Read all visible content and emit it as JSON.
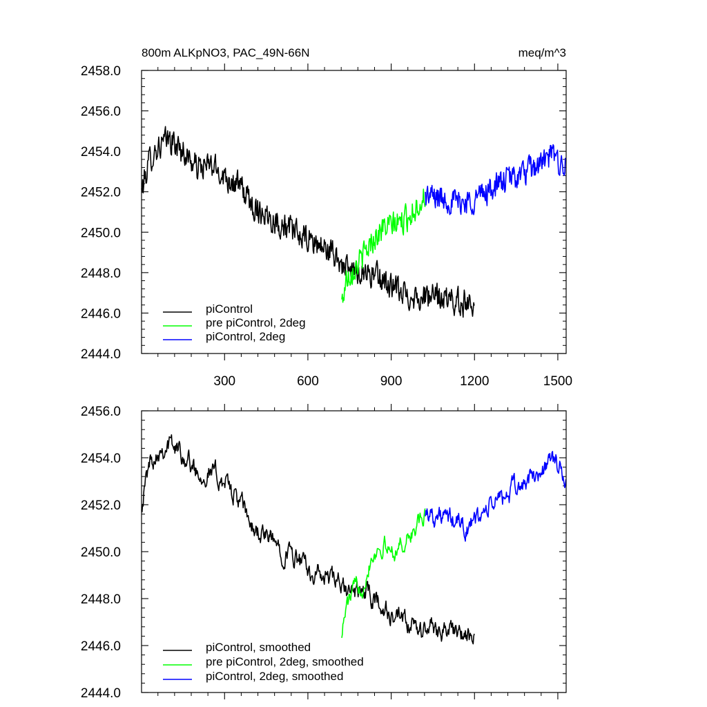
{
  "chart_data": [
    {
      "type": "line",
      "title_left": "800m ALKpNO3, PAC_49N-66N",
      "title_right": "meq/m^3",
      "xlim": [
        1,
        1530
      ],
      "ylim": [
        2444.0,
        2458.0
      ],
      "x_ticks": [
        300,
        600,
        900,
        1200,
        1500
      ],
      "x_tick_labels": [
        "300",
        "600",
        "900",
        "1200",
        "1500"
      ],
      "y_ticks": [
        2444.0,
        2446.0,
        2448.0,
        2450.0,
        2452.0,
        2454.0,
        2456.0,
        2458.0
      ],
      "y_tick_labels": [
        "2444.0",
        "2446.0",
        "2448.0",
        "2450.0",
        "2452.0",
        "2454.0",
        "2456.0",
        "2458.0"
      ],
      "legend_position": "bottom-left",
      "series": [
        {
          "name": "piControl",
          "color": "#000000",
          "x_start": 1,
          "x_end": 1200,
          "anchors": [
            [
              1,
              2452.0
            ],
            [
              30,
              2453.6
            ],
            [
              60,
              2454.2
            ],
            [
              100,
              2454.6
            ],
            [
              150,
              2454.0
            ],
            [
              200,
              2453.2
            ],
            [
              250,
              2453.3
            ],
            [
              300,
              2452.8
            ],
            [
              360,
              2452.2
            ],
            [
              400,
              2451.3
            ],
            [
              450,
              2450.9
            ],
            [
              500,
              2450.4
            ],
            [
              550,
              2450.0
            ],
            [
              600,
              2449.6
            ],
            [
              650,
              2449.3
            ],
            [
              700,
              2448.8
            ],
            [
              750,
              2448.0
            ],
            [
              800,
              2448.1
            ],
            [
              850,
              2447.8
            ],
            [
              900,
              2447.3
            ],
            [
              950,
              2446.9
            ],
            [
              1000,
              2446.8
            ],
            [
              1050,
              2446.8
            ],
            [
              1100,
              2446.7
            ],
            [
              1150,
              2446.5
            ],
            [
              1200,
              2446.6
            ]
          ],
          "noise_amplitude": 0.9
        },
        {
          "name": "pre piControl, 2deg",
          "color": "#00ff00",
          "x_start": 722,
          "x_end": 1022,
          "anchors": [
            [
              722,
              2446.5
            ],
            [
              740,
              2447.8
            ],
            [
              770,
              2448.3
            ],
            [
              800,
              2448.8
            ],
            [
              830,
              2449.6
            ],
            [
              870,
              2450.2
            ],
            [
              900,
              2450.3
            ],
            [
              950,
              2450.6
            ],
            [
              1000,
              2451.4
            ],
            [
              1022,
              2451.8
            ]
          ],
          "noise_amplitude": 0.9
        },
        {
          "name": "piControl, 2deg",
          "color": "#0000ff",
          "x_start": 1023,
          "x_end": 1530,
          "anchors": [
            [
              1023,
              2451.8
            ],
            [
              1080,
              2451.7
            ],
            [
              1130,
              2451.5
            ],
            [
              1180,
              2451.5
            ],
            [
              1230,
              2451.9
            ],
            [
              1280,
              2452.3
            ],
            [
              1330,
              2452.7
            ],
            [
              1380,
              2452.9
            ],
            [
              1430,
              2453.3
            ],
            [
              1480,
              2453.8
            ],
            [
              1530,
              2453.2
            ]
          ],
          "noise_amplitude": 0.9
        }
      ]
    },
    {
      "type": "line",
      "xlim": [
        1,
        1530
      ],
      "ylim": [
        2444.0,
        2456.0
      ],
      "x_ticks": [
        300,
        600,
        900,
        1200,
        1500
      ],
      "y_ticks": [
        2444.0,
        2446.0,
        2448.0,
        2450.0,
        2452.0,
        2454.0,
        2456.0
      ],
      "y_tick_labels": [
        "2444.0",
        "2446.0",
        "2448.0",
        "2450.0",
        "2452.0",
        "2454.0",
        "2456.0"
      ],
      "legend_position": "bottom-left",
      "series": [
        {
          "name": "piControl, smoothed",
          "color": "#000000",
          "x_start": 1,
          "x_end": 1200,
          "anchors": [
            [
              1,
              2452.1
            ],
            [
              30,
              2453.8
            ],
            [
              60,
              2454.4
            ],
            [
              100,
              2454.6
            ],
            [
              150,
              2454.2
            ],
            [
              200,
              2453.4
            ],
            [
              250,
              2453.4
            ],
            [
              300,
              2453.0
            ],
            [
              360,
              2452.0
            ],
            [
              400,
              2451.0
            ],
            [
              450,
              2450.6
            ],
            [
              500,
              2450.2
            ],
            [
              550,
              2449.8
            ],
            [
              600,
              2449.2
            ],
            [
              650,
              2448.9
            ],
            [
              700,
              2448.7
            ],
            [
              750,
              2448.2
            ],
            [
              800,
              2448.3
            ],
            [
              850,
              2447.9
            ],
            [
              900,
              2447.2
            ],
            [
              950,
              2446.9
            ],
            [
              1000,
              2446.6
            ],
            [
              1050,
              2446.8
            ],
            [
              1100,
              2446.7
            ],
            [
              1150,
              2446.4
            ],
            [
              1200,
              2446.2
            ]
          ],
          "noise_amplitude": 0.5
        },
        {
          "name": "pre piControl, 2deg, smoothed",
          "color": "#00ff00",
          "x_start": 722,
          "x_end": 1022,
          "anchors": [
            [
              722,
              2446.6
            ],
            [
              740,
              2447.7
            ],
            [
              770,
              2448.4
            ],
            [
              800,
              2448.7
            ],
            [
              830,
              2449.9
            ],
            [
              870,
              2450.3
            ],
            [
              900,
              2450.0
            ],
            [
              950,
              2450.4
            ],
            [
              1000,
              2451.2
            ],
            [
              1022,
              2451.4
            ]
          ],
          "noise_amplitude": 0.45
        },
        {
          "name": "piControl, 2deg, smoothed",
          "color": "#0000ff",
          "x_start": 1023,
          "x_end": 1530,
          "anchors": [
            [
              1023,
              2451.8
            ],
            [
              1080,
              2451.4
            ],
            [
              1130,
              2451.3
            ],
            [
              1180,
              2451.0
            ],
            [
              1230,
              2451.6
            ],
            [
              1280,
              2452.2
            ],
            [
              1330,
              2452.5
            ],
            [
              1380,
              2452.9
            ],
            [
              1430,
              2453.3
            ],
            [
              1480,
              2454.0
            ],
            [
              1530,
              2453.0
            ]
          ],
          "noise_amplitude": 0.5
        }
      ]
    }
  ]
}
